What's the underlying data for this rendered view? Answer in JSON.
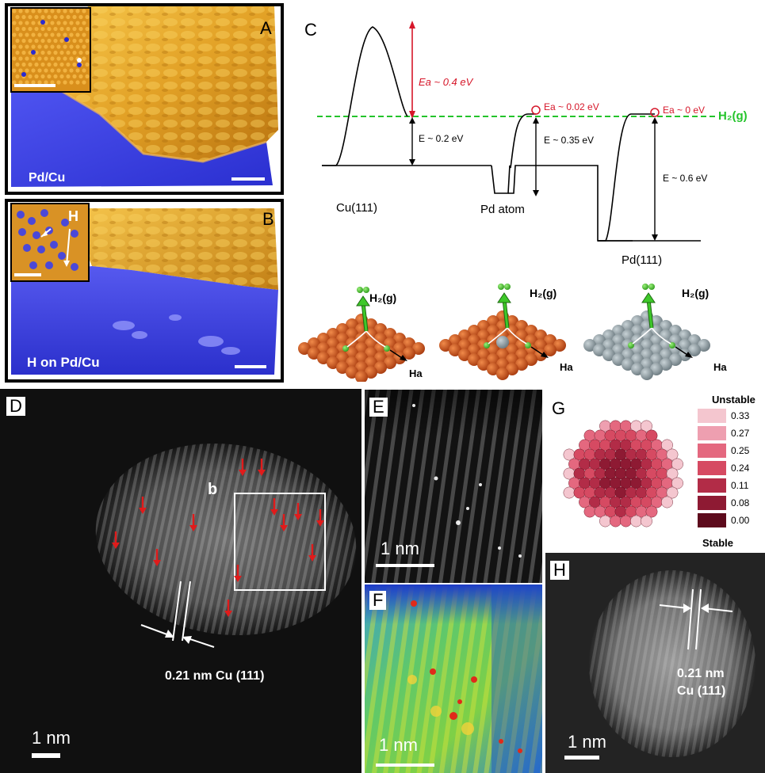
{
  "panel_a": {
    "letter": "A",
    "label": "Pd/Cu"
  },
  "panel_b": {
    "letter": "B",
    "label": "H on Pd/Cu",
    "inset_label": "H"
  },
  "panel_c": {
    "letter": "C",
    "h2_line_label": "H₂(g)",
    "ea_cu": "Ea ~ 0.4 eV",
    "e_cu": "E ~ 0.2 eV",
    "ea_pd_atom": "Ea ~ 0.02 eV",
    "e_pd_atom": "E ~ 0.35 eV",
    "ea_pd111": "Ea ~ 0 eV",
    "e_pd111": "E ~ 0.6 eV",
    "site_cu": "Cu(111)",
    "site_pd_atom": "Pd atom",
    "site_pd111": "Pd(111)",
    "h2_label_1": "H₂(g)",
    "h2_label_2": "H₂(g)",
    "h2_label_3": "H₂(g)",
    "ha_label_1": "Ha",
    "ha_label_2": "Ha",
    "ha_label_3": "Ha"
  },
  "panel_d": {
    "letter": "D",
    "box_label": "b",
    "spacing_label": "0.21 nm Cu (111)",
    "scale": "1 nm"
  },
  "panel_e": {
    "letter": "E",
    "scale": "1 nm"
  },
  "panel_f": {
    "letter": "F",
    "scale": "1 nm"
  },
  "panel_g": {
    "letter": "G",
    "top_label": "Unstable",
    "bottom_label": "Stable",
    "legend": [
      {
        "value": "0.33",
        "color": "#f4c6cf"
      },
      {
        "value": "0.27",
        "color": "#ee9fb0"
      },
      {
        "value": "0.25",
        "color": "#e4687f"
      },
      {
        "value": "0.24",
        "color": "#d64a62"
      },
      {
        "value": "0.11",
        "color": "#b22c47"
      },
      {
        "value": "0.08",
        "color": "#8e1a33"
      },
      {
        "value": "0.00",
        "color": "#5d0a1c"
      }
    ]
  },
  "panel_h": {
    "letter": "H",
    "spacing_line1": "0.21 nm",
    "spacing_line2": "Cu (111)",
    "scale": "1 nm"
  },
  "colors": {
    "gold": "#e6a92a",
    "blue": "#3d3fe0",
    "red_annotation": "#d6172a",
    "green_line": "#24c42b",
    "copper": "#c44515",
    "palladium": "#8c9aa1"
  }
}
